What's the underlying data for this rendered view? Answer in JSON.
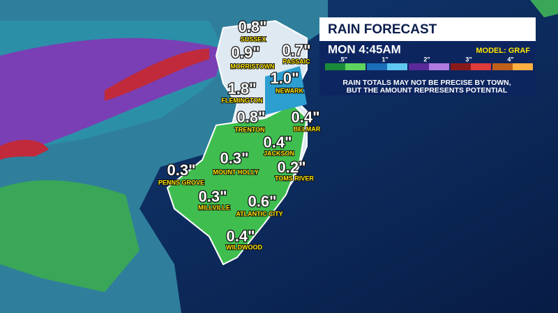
{
  "panel": {
    "title": "RAIN FORECAST",
    "time": "MON 4:45AM",
    "model": "MODEL: GRAF",
    "legend": [
      ".5\"",
      "1\"",
      "2\"",
      "3\"",
      "4\""
    ],
    "note": [
      "RAIN TOTALS MAY NOT BE PRECISE BY TOWN,",
      "BUT THE AMOUNT REPRESENTS POTENTIAL"
    ]
  },
  "towns": [
    {
      "name": "SUSSEX",
      "amount": "0.8\""
    },
    {
      "name": "MORRISTOWN",
      "amount": "0.9\""
    },
    {
      "name": "PASSAIC",
      "amount": "0.7\""
    },
    {
      "name": "NEWARK",
      "amount": "1.0\""
    },
    {
      "name": "FLEMINGTON",
      "amount": "1.8\""
    },
    {
      "name": "TRENTON",
      "amount": "0.8\""
    },
    {
      "name": "BELMAR",
      "amount": "0.4\""
    },
    {
      "name": "JACKSON",
      "amount": "0.4\""
    },
    {
      "name": "MOUNT HOLLY",
      "amount": "0.3\""
    },
    {
      "name": "TOMS RIVER",
      "amount": "0.2\""
    },
    {
      "name": "PENNS GROVE",
      "amount": "0.3\""
    },
    {
      "name": "MILLVILLE",
      "amount": "0.3\""
    },
    {
      "name": "ATLANTIC CITY",
      "amount": "0.6\""
    },
    {
      "name": "WILDWOOD",
      "amount": "0.4\""
    }
  ]
}
